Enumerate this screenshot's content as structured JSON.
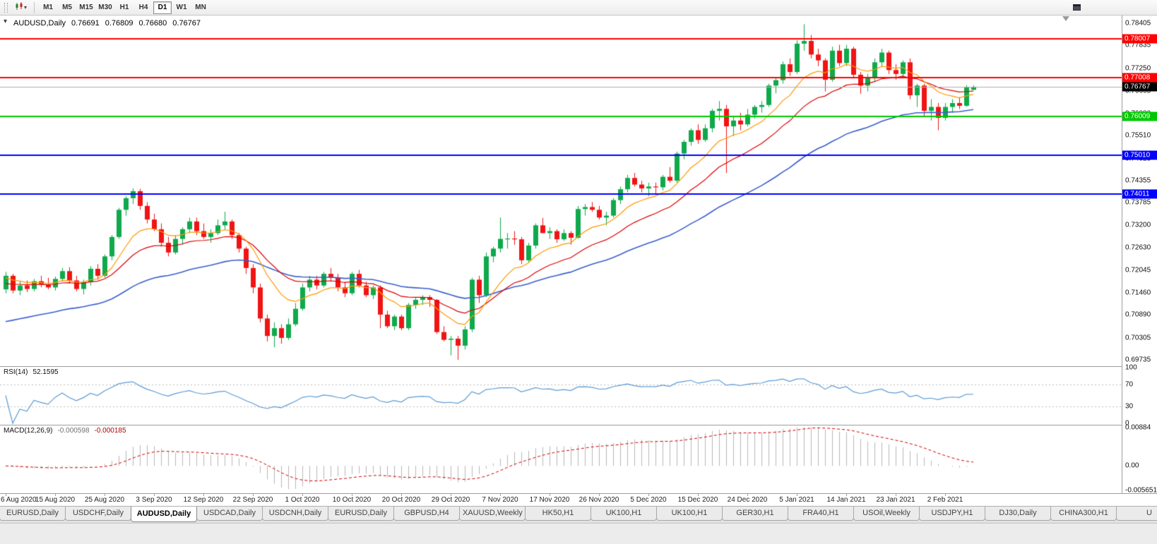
{
  "toolbar": {
    "timeframes": [
      "M1",
      "M5",
      "M15",
      "M30",
      "H1",
      "H4",
      "D1",
      "W1",
      "MN"
    ],
    "active_timeframe": "D1"
  },
  "chart": {
    "title": {
      "symbol_period": "AUDUSD,Daily",
      "open": "0.76691",
      "high": "0.76809",
      "low": "0.76680",
      "close": "0.76767"
    }
  },
  "indicators": {
    "rsi": {
      "label": "RSI(14)",
      "value": "52.1595",
      "color": "#5b9bd5",
      "levels": [
        70,
        30
      ],
      "scale": [
        {
          "label": "100",
          "v": 100
        },
        {
          "label": "70",
          "v": 70
        },
        {
          "label": "30",
          "v": 30
        },
        {
          "label": "0",
          "v": 0
        }
      ]
    },
    "macd": {
      "label": "MACD(12,26,9)",
      "value": "-0.000598",
      "signal_value": "-0.000185",
      "histogram_color": "#b8b8b8",
      "signal_color": "#d40000",
      "scale": [
        {
          "label": "0.00884",
          "v": 0.00884
        },
        {
          "label": "0.00",
          "v": 0
        },
        {
          "label": "-0.005651",
          "v": -0.005651
        }
      ]
    }
  },
  "chart_data": {
    "type": "candlestick",
    "symbol": "AUDUSD",
    "period": "Daily",
    "up_color": "#0fa94c",
    "down_color": "#f01414",
    "ma_colors": {
      "fast": "#ff9900",
      "medium": "#dd0000",
      "slow": "#3a5fcd"
    },
    "bars_per_label": 7,
    "x_labels": [
      "6 Aug 2020",
      "15 Aug 2020",
      "25 Aug 2020",
      "3 Sep 2020",
      "12 Sep 2020",
      "22 Sep 2020",
      "1 Oct 2020",
      "10 Oct 2020",
      "20 Oct 2020",
      "29 Oct 2020",
      "7 Nov 2020",
      "17 Nov 2020",
      "26 Nov 2020",
      "5 Dec 2020",
      "15 Dec 2020",
      "24 Dec 2020",
      "5 Jan 2021",
      "14 Jan 2021",
      "23 Jan 2021",
      "2 Feb 2021"
    ],
    "y_ticks": [
      "0.78405",
      "0.77835",
      "0.77250",
      "0.76665",
      "0.76080",
      "0.75510",
      "0.74925",
      "0.74355",
      "0.73785",
      "0.73200",
      "0.72630",
      "0.72045",
      "0.71460",
      "0.70890",
      "0.70305",
      "0.69735"
    ],
    "price_lines": [
      {
        "label": "0.78007",
        "value": 0.78007,
        "color": "#ff0000"
      },
      {
        "label": "0.77008",
        "value": 0.77008,
        "color": "#ff0000"
      },
      {
        "label": "0.76009",
        "value": 0.76009,
        "color": "#00c800"
      },
      {
        "label": "0.75010",
        "value": 0.7501,
        "color": "#0000ff"
      },
      {
        "label": "0.74011",
        "value": 0.74011,
        "color": "#0000ff"
      }
    ],
    "bid_line": {
      "label": "0.76767",
      "value": 0.76767,
      "line_color": "#b0b0b0",
      "tag_bg": "#000000"
    },
    "candles": [
      [
        0.7155,
        0.72,
        0.7145,
        0.719
      ],
      [
        0.719,
        0.7195,
        0.7145,
        0.7152
      ],
      [
        0.7152,
        0.7175,
        0.714,
        0.7165
      ],
      [
        0.7165,
        0.7178,
        0.7148,
        0.7156
      ],
      [
        0.7156,
        0.7182,
        0.715,
        0.7176
      ],
      [
        0.7176,
        0.719,
        0.716,
        0.7168
      ],
      [
        0.7168,
        0.7185,
        0.7155,
        0.716
      ],
      [
        0.716,
        0.7188,
        0.7152,
        0.7182
      ],
      [
        0.7182,
        0.721,
        0.7175,
        0.7202
      ],
      [
        0.7202,
        0.7212,
        0.717,
        0.7178
      ],
      [
        0.7178,
        0.719,
        0.715,
        0.7156
      ],
      [
        0.7156,
        0.718,
        0.7142,
        0.7174
      ],
      [
        0.7174,
        0.7215,
        0.7165,
        0.7208
      ],
      [
        0.7208,
        0.722,
        0.718,
        0.719
      ],
      [
        0.719,
        0.7245,
        0.7185,
        0.724
      ],
      [
        0.724,
        0.7295,
        0.723,
        0.729
      ],
      [
        0.729,
        0.7365,
        0.7285,
        0.736
      ],
      [
        0.736,
        0.7395,
        0.7345,
        0.739
      ],
      [
        0.739,
        0.7415,
        0.7375,
        0.7408
      ],
      [
        0.7408,
        0.7414,
        0.736,
        0.737
      ],
      [
        0.737,
        0.738,
        0.7325,
        0.7335
      ],
      [
        0.7335,
        0.735,
        0.7305,
        0.731
      ],
      [
        0.731,
        0.7325,
        0.7265,
        0.7275
      ],
      [
        0.7275,
        0.729,
        0.724,
        0.725
      ],
      [
        0.725,
        0.7295,
        0.7245,
        0.7285
      ],
      [
        0.7285,
        0.7315,
        0.727,
        0.731
      ],
      [
        0.731,
        0.734,
        0.73,
        0.733
      ],
      [
        0.733,
        0.734,
        0.7295,
        0.7305
      ],
      [
        0.7305,
        0.7325,
        0.7285,
        0.729
      ],
      [
        0.729,
        0.731,
        0.7275,
        0.73
      ],
      [
        0.73,
        0.7335,
        0.7295,
        0.732
      ],
      [
        0.732,
        0.7355,
        0.731,
        0.733
      ],
      [
        0.733,
        0.7335,
        0.7285,
        0.7295
      ],
      [
        0.7295,
        0.73,
        0.725,
        0.726
      ],
      [
        0.726,
        0.7265,
        0.7195,
        0.721
      ],
      [
        0.721,
        0.722,
        0.7145,
        0.716
      ],
      [
        0.716,
        0.717,
        0.707,
        0.708
      ],
      [
        0.708,
        0.709,
        0.7021,
        0.7035
      ],
      [
        0.7035,
        0.707,
        0.7006,
        0.7055
      ],
      [
        0.7055,
        0.7065,
        0.7015,
        0.703
      ],
      [
        0.703,
        0.708,
        0.7025,
        0.7065
      ],
      [
        0.7065,
        0.712,
        0.706,
        0.7105
      ],
      [
        0.7105,
        0.717,
        0.71,
        0.716
      ],
      [
        0.716,
        0.719,
        0.715,
        0.718
      ],
      [
        0.718,
        0.719,
        0.7155,
        0.7165
      ],
      [
        0.7165,
        0.72,
        0.716,
        0.7195
      ],
      [
        0.7195,
        0.721,
        0.7175,
        0.7185
      ],
      [
        0.7185,
        0.7195,
        0.715,
        0.716
      ],
      [
        0.716,
        0.7175,
        0.7135,
        0.7145
      ],
      [
        0.7145,
        0.72,
        0.714,
        0.7195
      ],
      [
        0.7195,
        0.7205,
        0.716,
        0.7165
      ],
      [
        0.7165,
        0.7175,
        0.7135,
        0.714
      ],
      [
        0.714,
        0.7165,
        0.713,
        0.716
      ],
      [
        0.716,
        0.7165,
        0.7055,
        0.709
      ],
      [
        0.709,
        0.71,
        0.7055,
        0.706
      ],
      [
        0.706,
        0.709,
        0.705,
        0.7085
      ],
      [
        0.7085,
        0.709,
        0.705,
        0.7055
      ],
      [
        0.7055,
        0.712,
        0.705,
        0.7115
      ],
      [
        0.7115,
        0.7135,
        0.7105,
        0.7128
      ],
      [
        0.7128,
        0.714,
        0.7115,
        0.7135
      ],
      [
        0.7135,
        0.714,
        0.711,
        0.7128
      ],
      [
        0.7128,
        0.713,
        0.704,
        0.7045
      ],
      [
        0.7045,
        0.706,
        0.7021,
        0.7025
      ],
      [
        0.7025,
        0.7035,
        0.6985,
        0.7028
      ],
      [
        0.7028,
        0.7035,
        0.69735,
        0.701
      ],
      [
        0.701,
        0.706,
        0.7,
        0.7052
      ],
      [
        0.7052,
        0.7185,
        0.7045,
        0.718
      ],
      [
        0.718,
        0.719,
        0.712,
        0.714
      ],
      [
        0.714,
        0.725,
        0.7135,
        0.724
      ],
      [
        0.724,
        0.7265,
        0.7225,
        0.726
      ],
      [
        0.726,
        0.734,
        0.725,
        0.7285
      ],
      [
        0.7285,
        0.73,
        0.726,
        0.7286
      ],
      [
        0.7286,
        0.7305,
        0.727,
        0.7284
      ],
      [
        0.7284,
        0.729,
        0.722,
        0.723
      ],
      [
        0.723,
        0.7275,
        0.7225,
        0.7268
      ],
      [
        0.7268,
        0.7325,
        0.726,
        0.732
      ],
      [
        0.732,
        0.7339,
        0.73,
        0.73
      ],
      [
        0.73,
        0.7315,
        0.7285,
        0.7305
      ],
      [
        0.7305,
        0.731,
        0.7275,
        0.7284
      ],
      [
        0.7284,
        0.731,
        0.728,
        0.73
      ],
      [
        0.73,
        0.7305,
        0.727,
        0.7288
      ],
      [
        0.7288,
        0.737,
        0.7285,
        0.7362
      ],
      [
        0.7362,
        0.7375,
        0.7345,
        0.7367
      ],
      [
        0.7367,
        0.738,
        0.7355,
        0.736
      ],
      [
        0.736,
        0.737,
        0.7335,
        0.734
      ],
      [
        0.734,
        0.7355,
        0.732,
        0.7345
      ],
      [
        0.7345,
        0.739,
        0.734,
        0.7385
      ],
      [
        0.7385,
        0.742,
        0.7375,
        0.7413
      ],
      [
        0.7413,
        0.745,
        0.7405,
        0.7442
      ],
      [
        0.7442,
        0.7455,
        0.742,
        0.7425
      ],
      [
        0.7425,
        0.7435,
        0.7405,
        0.7415
      ],
      [
        0.7415,
        0.743,
        0.7395,
        0.742
      ],
      [
        0.742,
        0.743,
        0.74,
        0.7418
      ],
      [
        0.7418,
        0.745,
        0.741,
        0.7445
      ],
      [
        0.7445,
        0.747,
        0.743,
        0.7435
      ],
      [
        0.7435,
        0.751,
        0.743,
        0.7505
      ],
      [
        0.7505,
        0.754,
        0.749,
        0.7535
      ],
      [
        0.7535,
        0.757,
        0.7525,
        0.7565
      ],
      [
        0.7565,
        0.758,
        0.753,
        0.754
      ],
      [
        0.754,
        0.758,
        0.7535,
        0.757
      ],
      [
        0.757,
        0.762,
        0.756,
        0.7615
      ],
      [
        0.7615,
        0.764,
        0.759,
        0.762
      ],
      [
        0.762,
        0.763,
        0.7455,
        0.7575
      ],
      [
        0.7575,
        0.76,
        0.755,
        0.759
      ],
      [
        0.759,
        0.761,
        0.7565,
        0.758
      ],
      [
        0.758,
        0.762,
        0.7575,
        0.7605
      ],
      [
        0.7605,
        0.763,
        0.7595,
        0.7625
      ],
      [
        0.7625,
        0.764,
        0.761,
        0.763
      ],
      [
        0.763,
        0.7685,
        0.7625,
        0.768
      ],
      [
        0.768,
        0.77,
        0.766,
        0.7694
      ],
      [
        0.7694,
        0.7742,
        0.7685,
        0.7735
      ],
      [
        0.7735,
        0.775,
        0.7705,
        0.7715
      ],
      [
        0.7715,
        0.7797,
        0.771,
        0.7788
      ],
      [
        0.7788,
        0.7838,
        0.777,
        0.7795
      ],
      [
        0.7795,
        0.781,
        0.775,
        0.776
      ],
      [
        0.776,
        0.7775,
        0.773,
        0.7745
      ],
      [
        0.7745,
        0.775,
        0.7665,
        0.7695
      ],
      [
        0.7695,
        0.778,
        0.769,
        0.777
      ],
      [
        0.777,
        0.7785,
        0.773,
        0.7738
      ],
      [
        0.7738,
        0.7785,
        0.773,
        0.7775
      ],
      [
        0.7775,
        0.778,
        0.7698,
        0.7708
      ],
      [
        0.7708,
        0.7715,
        0.7659,
        0.768
      ],
      [
        0.768,
        0.771,
        0.7665,
        0.77
      ],
      [
        0.77,
        0.775,
        0.769,
        0.774
      ],
      [
        0.774,
        0.7775,
        0.773,
        0.7765
      ],
      [
        0.7765,
        0.777,
        0.771,
        0.772
      ],
      [
        0.772,
        0.7735,
        0.7695,
        0.771
      ],
      [
        0.771,
        0.7745,
        0.77,
        0.774
      ],
      [
        0.774,
        0.775,
        0.7645,
        0.7655
      ],
      [
        0.7655,
        0.7685,
        0.7625,
        0.768
      ],
      [
        0.768,
        0.7685,
        0.76,
        0.7615
      ],
      [
        0.7615,
        0.7645,
        0.759,
        0.7625
      ],
      [
        0.7625,
        0.7635,
        0.7565,
        0.7597
      ],
      [
        0.7597,
        0.7635,
        0.759,
        0.7625
      ],
      [
        0.7625,
        0.7645,
        0.761,
        0.7635
      ],
      [
        0.7635,
        0.765,
        0.762,
        0.7628
      ],
      [
        0.7628,
        0.7681,
        0.7625,
        0.7676
      ],
      [
        0.76691,
        0.76809,
        0.7668,
        0.76767
      ]
    ]
  },
  "tab_bar": {
    "active_index": 2,
    "tabs": [
      "EURUSD,Daily",
      "USDCHF,Daily",
      "AUDUSD,Daily",
      "USDCAD,Daily",
      "USDCNH,Daily",
      "EURUSD,Daily",
      "GBPUSD,H4",
      "XAUUSD,Weekly",
      "HK50,H1",
      "UK100,H1",
      "UK100,H1",
      "GER30,H1",
      "FRA40,H1",
      "USOil,Weekly",
      "USDJPY,H1",
      "DJ30,Daily",
      "CHINA300,H1",
      "U"
    ]
  }
}
